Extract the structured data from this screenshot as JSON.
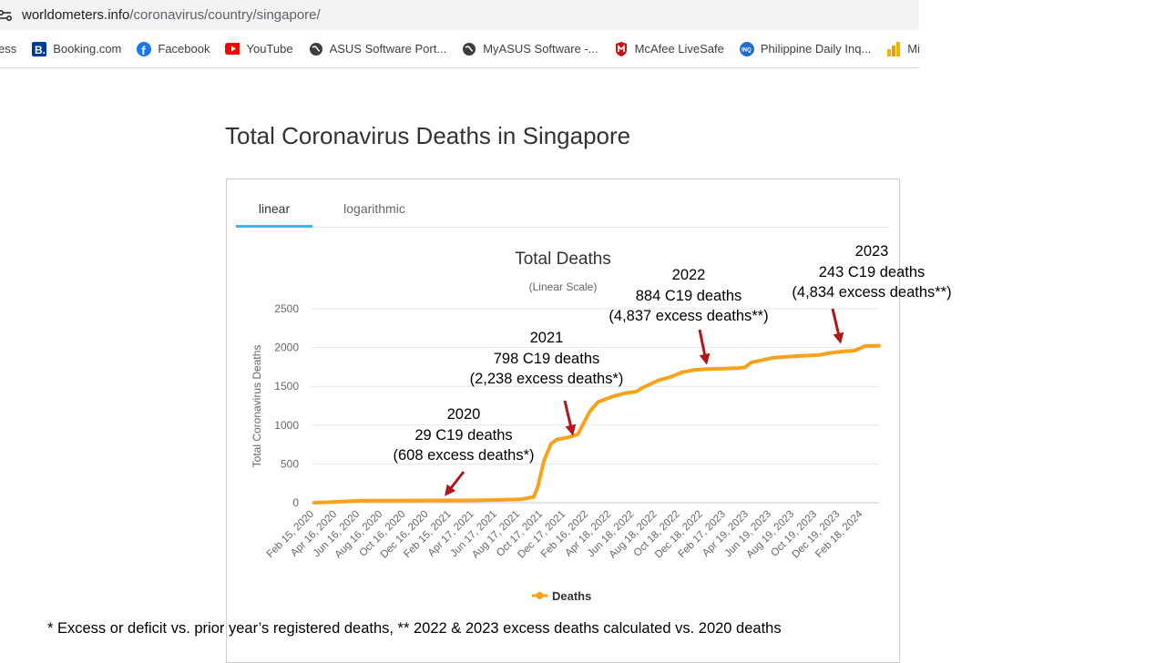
{
  "browser": {
    "url_host": "worldometers.info",
    "url_path": "/coronavirus/country/singapore/",
    "bookmarks": [
      {
        "label": "ess",
        "icon": "bookmark-icon"
      },
      {
        "label": "Booking.com",
        "icon": "booking-icon"
      },
      {
        "label": "Facebook",
        "icon": "facebook-icon"
      },
      {
        "label": "YouTube",
        "icon": "youtube-icon"
      },
      {
        "label": "ASUS Software Port...",
        "icon": "globe-icon"
      },
      {
        "label": "MyASUS Software -...",
        "icon": "globe-icon"
      },
      {
        "label": "McAfee LiveSafe",
        "icon": "mcafee-icon"
      },
      {
        "label": "Philippine Daily Inq...",
        "icon": "inquirer-icon"
      },
      {
        "label": "Microsoft",
        "icon": "chart-icon"
      }
    ]
  },
  "page": {
    "title": "Total Coronavirus Deaths in Singapore"
  },
  "tabs": [
    {
      "label": "linear",
      "active": true
    },
    {
      "label": "logarithmic",
      "active": false
    }
  ],
  "colors": {
    "series": "#f7a21b",
    "arrow": "#b2151b",
    "tab_active": "#3fb8e6"
  },
  "chart_data": {
    "type": "line",
    "title": "Total Deaths",
    "subtitle": "(Linear Scale)",
    "ylabel": "Total Coronavirus Deaths",
    "xlabel": "",
    "ylim": [
      0,
      2500
    ],
    "y_ticks": [
      0,
      500,
      1000,
      1500,
      2000,
      2500
    ],
    "x_ticks": [
      "Feb 15, 2020",
      "Apr 16, 2020",
      "Jun 16, 2020",
      "Aug 16, 2020",
      "Oct 16, 2020",
      "Dec 16, 2020",
      "Feb 15, 2021",
      "Apr 17, 2021",
      "Jun 17, 2021",
      "Aug 17, 2021",
      "Oct 17, 2021",
      "Dec 17, 2021",
      "Feb 16, 2022",
      "Apr 18, 2022",
      "Jun 18, 2022",
      "Aug 18, 2022",
      "Oct 18, 2022",
      "Dec 18, 2022",
      "Feb 17, 2023",
      "Apr 19, 2023",
      "Jun 19, 2023",
      "Aug 19, 2023",
      "Oct 19, 2023",
      "Dec 19, 2023",
      "Feb 18, 2024"
    ],
    "grid": true,
    "legend": "bottom-center",
    "series": [
      {
        "name": "Deaths",
        "x": [
          "2020-02-15",
          "2020-04-16",
          "2020-06-16",
          "2020-08-16",
          "2020-10-16",
          "2020-12-16",
          "2021-02-15",
          "2021-04-17",
          "2021-06-17",
          "2021-08-17",
          "2021-09-20",
          "2021-10-01",
          "2021-10-17",
          "2021-11-05",
          "2021-11-20",
          "2021-12-17",
          "2022-01-15",
          "2022-02-16",
          "2022-03-10",
          "2022-04-18",
          "2022-05-18",
          "2022-06-18",
          "2022-07-05",
          "2022-08-18",
          "2022-09-18",
          "2022-10-18",
          "2022-11-18",
          "2022-12-18",
          "2023-02-17",
          "2023-03-15",
          "2023-04-05",
          "2023-04-19",
          "2023-06-19",
          "2023-08-19",
          "2023-10-19",
          "2023-11-15",
          "2023-12-19",
          "2024-01-20",
          "2024-02-18",
          "2024-03-25"
        ],
        "y": [
          0,
          12,
          26,
          27,
          28,
          29,
          29,
          31,
          35,
          44,
          75,
          210,
          540,
          760,
          815,
          838,
          880,
          1180,
          1300,
          1370,
          1410,
          1430,
          1480,
          1580,
          1620,
          1680,
          1710,
          1721,
          1730,
          1735,
          1745,
          1805,
          1870,
          1890,
          1905,
          1930,
          1950,
          1960,
          2020,
          2023
        ]
      }
    ],
    "annotations": [
      {
        "year": "2020",
        "c19_deaths": "29 C19 deaths",
        "excess": "(608 excess deaths*)"
      },
      {
        "year": "2021",
        "c19_deaths": "798 C19 deaths",
        "excess": "(2,238 excess deaths*)"
      },
      {
        "year": "2022",
        "c19_deaths": "884 C19 deaths",
        "excess": "(4,837 excess deaths**)"
      },
      {
        "year": "2023",
        "c19_deaths": "243 C19 deaths",
        "excess": "(4,834 excess deaths**)"
      }
    ],
    "footnote": "* Excess or deficit vs. prior year’s registered deaths, ** 2022 & 2023 excess deaths calculated vs. 2020 deaths"
  }
}
